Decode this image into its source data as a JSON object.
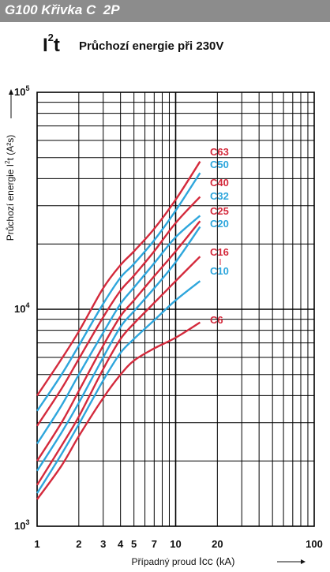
{
  "header": {
    "title": "G100 Křivka C  2P",
    "bar_color": "#8c8c8c"
  },
  "heading": {
    "symbol_base": "I",
    "symbol_sup": "2",
    "symbol_tail": "t",
    "subtitle": "Průchozí energie při 230V"
  },
  "chart_data": {
    "type": "line",
    "x_scale": "log",
    "y_scale": "log",
    "xlim": [
      1,
      100
    ],
    "ylim": [
      1000,
      100000
    ],
    "grid": true,
    "xlabel_prefix": "Případný proud",
    "xlabel_main": "Icc",
    "xlabel_unit": "(kA)",
    "ylabel_prefix": "Průchozí energie",
    "ylabel_main": "I",
    "ylabel_sup": "2",
    "ylabel_tail": "t",
    "ylabel_unit": "(A²s)",
    "x_tick_labels": [
      {
        "value": 1,
        "label": "1"
      },
      {
        "value": 2,
        "label": "2"
      },
      {
        "value": 3,
        "label": "3"
      },
      {
        "value": 4,
        "label": "4"
      },
      {
        "value": 5,
        "label": "5"
      },
      {
        "value": 7,
        "label": "7"
      },
      {
        "value": 10,
        "label": "10"
      },
      {
        "value": 20,
        "label": "20"
      },
      {
        "value": 100,
        "label": "100"
      }
    ],
    "y_tick_labels": [
      {
        "value": 1000,
        "base": "10",
        "exp": "3"
      },
      {
        "value": 10000,
        "base": "10",
        "exp": "4"
      },
      {
        "value": 100000,
        "base": "10",
        "exp": "5"
      }
    ],
    "colors": {
      "red": "#d42a3c",
      "blue": "#2ea6dc",
      "grid": "#000000"
    },
    "series": [
      {
        "name": "C63",
        "color": "#d42a3c",
        "x": [
          1,
          1.5,
          2,
          3,
          4,
          5,
          7,
          10,
          15
        ],
        "y": [
          4000,
          5900,
          7900,
          12500,
          16000,
          18500,
          23500,
          32000,
          48000
        ]
      },
      {
        "name": "C50",
        "color": "#2ea6dc",
        "x": [
          1,
          1.5,
          2,
          3,
          4,
          5,
          7,
          10,
          15
        ],
        "y": [
          3400,
          5000,
          6800,
          10600,
          14000,
          16200,
          20800,
          28500,
          42500
        ]
      },
      {
        "name": "C40",
        "color": "#d42a3c",
        "x": [
          1,
          1.5,
          2,
          3,
          4,
          5,
          7,
          10,
          15
        ],
        "y": [
          2900,
          4300,
          5900,
          9200,
          12200,
          14300,
          18500,
          25000,
          33000
        ]
      },
      {
        "name": "C32",
        "color": "#2ea6dc",
        "x": [
          1,
          1.5,
          2,
          3,
          4,
          5,
          7,
          10,
          15
        ],
        "y": [
          2400,
          3600,
          5000,
          7800,
          10600,
          12600,
          16300,
          21500,
          27000
        ]
      },
      {
        "name": "C25",
        "color": "#d42a3c",
        "x": [
          1,
          1.5,
          2,
          3,
          4,
          5,
          7,
          10,
          15
        ],
        "y": [
          2000,
          3000,
          4200,
          6800,
          9300,
          11000,
          14200,
          18500,
          25500
        ]
      },
      {
        "name": "C20",
        "color": "#2ea6dc",
        "x": [
          1,
          1.5,
          2,
          3,
          4,
          5,
          7,
          10,
          15
        ],
        "y": [
          1800,
          2700,
          3700,
          6000,
          8300,
          9800,
          12500,
          16500,
          24000
        ]
      },
      {
        "name": "C16",
        "color": "#d42a3c",
        "x": [
          1,
          1.5,
          2,
          3,
          4,
          5,
          7,
          10,
          15
        ],
        "y": [
          1550,
          2350,
          3200,
          5300,
          7300,
          8600,
          10700,
          13500,
          17500
        ]
      },
      {
        "name": "C10",
        "color": "#2ea6dc",
        "x": [
          1,
          1.5,
          2,
          3,
          4,
          5,
          7,
          10,
          15
        ],
        "y": [
          1420,
          2150,
          2950,
          4700,
          6300,
          7300,
          8900,
          11000,
          13500
        ]
      },
      {
        "name": "C6",
        "color": "#d42a3c",
        "x": [
          1,
          1.5,
          2,
          3,
          4,
          5,
          7,
          10,
          15
        ],
        "y": [
          1330,
          1900,
          2600,
          3900,
          5000,
          5800,
          6600,
          7400,
          8700
        ]
      }
    ]
  }
}
